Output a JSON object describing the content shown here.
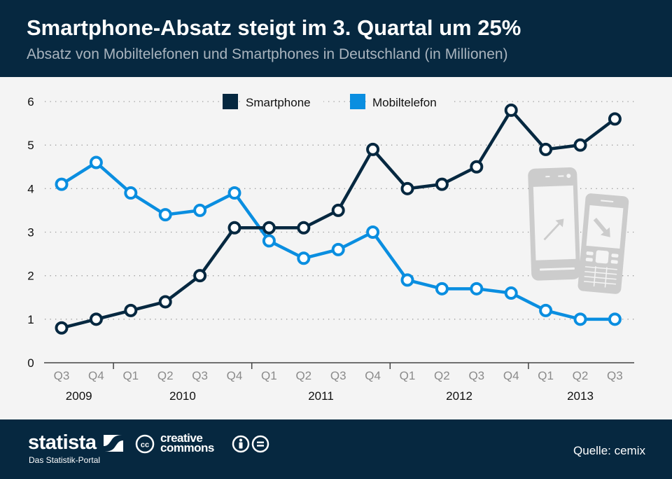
{
  "header": {
    "title": "Smartphone-Absatz steigt im 3. Quartal um 25%",
    "subtitle": "Absatz von Mobiltelefonen und Smartphones in Deutschland (in Millionen)"
  },
  "footer": {
    "brand_name": "statista",
    "brand_tagline": "Das Statistik-Portal",
    "license_line1": "creative",
    "license_line2": "commons",
    "cc_badge": "cc",
    "source": "Quelle: cemix"
  },
  "colors": {
    "background_dark": "#062840",
    "smartphone": "#062840",
    "mobiltelefon": "#0a8ee0",
    "plot_bg": "#f4f4f4",
    "icon_gray": "#cccccc"
  },
  "chart_data": {
    "type": "line",
    "title": "Smartphone-Absatz steigt im 3. Quartal um 25%",
    "subtitle": "Absatz von Mobiltelefonen und Smartphones in Deutschland (in Millionen)",
    "xlabel": "",
    "ylabel": "",
    "ylim": [
      0,
      6
    ],
    "yticks": [
      0,
      1,
      2,
      3,
      4,
      5,
      6
    ],
    "grid": true,
    "legend_position": "top-center",
    "categories": [
      "Q3",
      "Q4",
      "Q1",
      "Q2",
      "Q3",
      "Q4",
      "Q1",
      "Q2",
      "Q3",
      "Q4",
      "Q1",
      "Q2",
      "Q3",
      "Q4",
      "Q1",
      "Q2",
      "Q3"
    ],
    "years": [
      {
        "label": "2009",
        "start": 0,
        "end": 1
      },
      {
        "label": "2010",
        "start": 2,
        "end": 5
      },
      {
        "label": "2011",
        "start": 6,
        "end": 9
      },
      {
        "label": "2012",
        "start": 10,
        "end": 13
      },
      {
        "label": "2013",
        "start": 14,
        "end": 16
      }
    ],
    "series": [
      {
        "name": "Smartphone",
        "color": "#062840",
        "values": [
          0.8,
          1.0,
          1.2,
          1.4,
          2.0,
          3.1,
          3.1,
          3.1,
          3.5,
          4.9,
          4.0,
          4.1,
          4.5,
          5.8,
          4.9,
          5.0,
          5.6
        ]
      },
      {
        "name": "Mobiltelefon",
        "color": "#0a8ee0",
        "values": [
          4.1,
          4.6,
          3.9,
          3.4,
          3.5,
          3.9,
          2.8,
          2.4,
          2.6,
          3.0,
          1.9,
          1.7,
          1.7,
          1.6,
          1.2,
          1.0,
          1.0
        ]
      }
    ]
  }
}
